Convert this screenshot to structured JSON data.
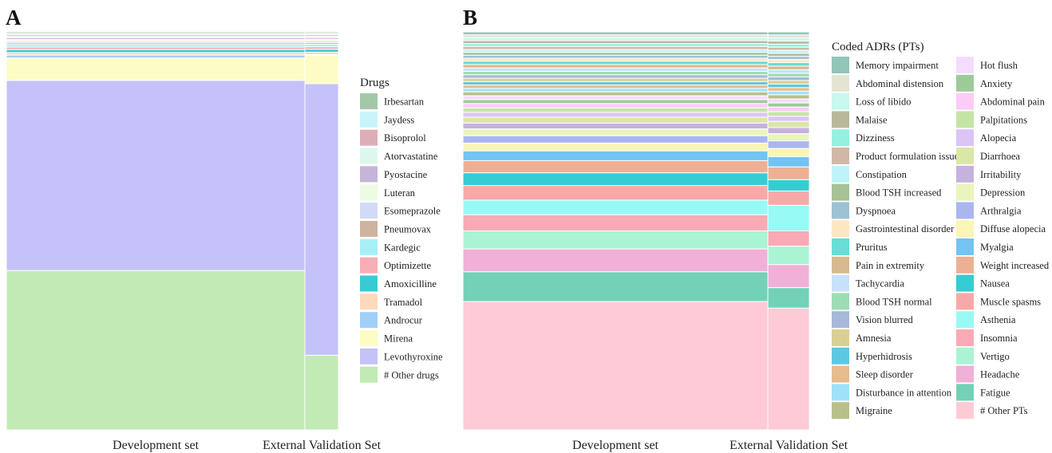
{
  "chart_data": [
    {
      "panel_label": "A",
      "type": "mosaic",
      "categories": [
        "Development set",
        "External Validation Set"
      ],
      "legend_title": "Drugs",
      "series": [
        {
          "name": "Irbesartan",
          "color": "#A3C8A7",
          "values": [
            0.0035,
            0.0035
          ]
        },
        {
          "name": "Jaydess",
          "color": "#C9F4FB",
          "values": [
            0.0035,
            0.0035
          ]
        },
        {
          "name": "Bisoprolol",
          "color": "#DDAFB5",
          "values": [
            0.0035,
            0.0035
          ]
        },
        {
          "name": "Atorvastatine",
          "color": "#DCF8EC",
          "values": [
            0.0035,
            0.0035
          ]
        },
        {
          "name": "Pyostacine",
          "color": "#C7B5D9",
          "values": [
            0.004,
            0.004
          ]
        },
        {
          "name": "Luteran",
          "color": "#EDFCE0",
          "values": [
            0.004,
            0.004
          ]
        },
        {
          "name": "Esomeprazole",
          "color": "#D2DAF6",
          "values": [
            0.004,
            0.004
          ]
        },
        {
          "name": "Pneumovax",
          "color": "#CDB49E",
          "values": [
            0.004,
            0.004
          ]
        },
        {
          "name": "Kardegic",
          "color": "#A8F0F8",
          "values": [
            0.006,
            0.006
          ]
        },
        {
          "name": "Optimizette",
          "color": "#F7AEB5",
          "values": [
            0.006,
            0.006
          ]
        },
        {
          "name": "Amoxicilline",
          "color": "#38CBD3",
          "values": [
            0.007,
            0.007
          ]
        },
        {
          "name": "Tramadol",
          "color": "#FDD9BD",
          "values": [
            0.006,
            0.006
          ]
        },
        {
          "name": "Androcur",
          "color": "#A2CFF8",
          "values": [
            0.007,
            0.002
          ]
        },
        {
          "name": "Mirena",
          "color": "#FCFCC4",
          "values": [
            0.053,
            0.068
          ]
        },
        {
          "name": "Levothyroxine",
          "color": "#C4C2F8",
          "values": [
            0.45,
            0.655
          ]
        },
        {
          "name": "# Other drugs",
          "color": "#C2EAB5",
          "values": [
            0.377,
            0.18
          ]
        }
      ]
    },
    {
      "panel_label": "B",
      "type": "mosaic",
      "categories": [
        "Development set",
        "External Validation Set"
      ],
      "legend_title": "Coded ADRs (PTs)",
      "series": [
        {
          "name": "Memory impairment",
          "color": "#93C5B8",
          "values": [
            0.006,
            0.006
          ]
        },
        {
          "name": "Abdominal distension",
          "color": "#E4E4D2",
          "values": [
            0.006,
            0.006
          ]
        },
        {
          "name": "Loss of libido",
          "color": "#C8F8EE",
          "values": [
            0.006,
            0.006
          ]
        },
        {
          "name": "Malaise",
          "color": "#B9B89A",
          "values": [
            0.006,
            0.006
          ]
        },
        {
          "name": "Dizziness",
          "color": "#96F0DF",
          "values": [
            0.006,
            0.006
          ]
        },
        {
          "name": "Product formulation issue",
          "color": "#D2B7A7",
          "values": [
            0.006,
            0.006
          ]
        },
        {
          "name": "Constipation",
          "color": "#BFF3FA",
          "values": [
            0.006,
            0.006
          ]
        },
        {
          "name": "Blood TSH increased",
          "color": "#A6C296",
          "values": [
            0.006,
            0.006
          ]
        },
        {
          "name": "Dyspnoea",
          "color": "#9CC2D3",
          "values": [
            0.006,
            0.006
          ]
        },
        {
          "name": "Gastrointestinal disorder",
          "color": "#FDE7C3",
          "values": [
            0.006,
            0.006
          ]
        },
        {
          "name": "Pruritus",
          "color": "#66DED7",
          "values": [
            0.007,
            0.007
          ]
        },
        {
          "name": "Pain in extremity",
          "color": "#D7BA8F",
          "values": [
            0.007,
            0.007
          ]
        },
        {
          "name": "Tachycardia",
          "color": "#C8E1FA",
          "values": [
            0.007,
            0.007
          ]
        },
        {
          "name": "Blood TSH normal",
          "color": "#9EDDB3",
          "values": [
            0.007,
            0.007
          ]
        },
        {
          "name": "Vision blurred",
          "color": "#A7B8D8",
          "values": [
            0.007,
            0.007
          ]
        },
        {
          "name": "Amnesia",
          "color": "#DACF93",
          "values": [
            0.007,
            0.007
          ]
        },
        {
          "name": "Hyperhidrosis",
          "color": "#5DC8E3",
          "values": [
            0.007,
            0.007
          ]
        },
        {
          "name": "Sleep disorder",
          "color": "#E6BC8E",
          "values": [
            0.007,
            0.007
          ]
        },
        {
          "name": "Disturbance in attention",
          "color": "#9FE2F8",
          "values": [
            0.007,
            0.007
          ]
        },
        {
          "name": "Migraine",
          "color": "#B8C08A",
          "values": [
            0.008,
            0.008
          ]
        },
        {
          "name": "Hot flush",
          "color": "#F4DDFC",
          "values": [
            0.008,
            0.008
          ]
        },
        {
          "name": "Anxiety",
          "color": "#9CCB98",
          "values": [
            0.008,
            0.008
          ]
        },
        {
          "name": "Abdominal pain",
          "color": "#FCCCF6",
          "values": [
            0.009,
            0.009
          ]
        },
        {
          "name": "Palpitations",
          "color": "#C4E4A4",
          "values": [
            0.009,
            0.009
          ]
        },
        {
          "name": "Alopecia",
          "color": "#DCC4F5",
          "values": [
            0.01,
            0.01
          ]
        },
        {
          "name": "Diarrhoea",
          "color": "#DAE7A7",
          "values": [
            0.012,
            0.012
          ]
        },
        {
          "name": "Irritability",
          "color": "#C6B1DF",
          "values": [
            0.012,
            0.012
          ]
        },
        {
          "name": "Depression",
          "color": "#E9F5BC",
          "values": [
            0.014,
            0.014
          ]
        },
        {
          "name": "Arthralgia",
          "color": "#AAB6EE",
          "values": [
            0.015,
            0.015
          ]
        },
        {
          "name": "Diffuse alopecia",
          "color": "#FBF5B6",
          "values": [
            0.016,
            0.016
          ]
        },
        {
          "name": "Myalgia",
          "color": "#72C4F2",
          "values": [
            0.02,
            0.02
          ]
        },
        {
          "name": "Weight increased",
          "color": "#EEB095",
          "values": [
            0.025,
            0.025
          ]
        },
        {
          "name": "Nausea",
          "color": "#36CCD3",
          "values": [
            0.026,
            0.022
          ]
        },
        {
          "name": "Muscle spasms",
          "color": "#F7A9A8",
          "values": [
            0.03,
            0.028
          ]
        },
        {
          "name": "Asthenia",
          "color": "#98FAF4",
          "values": [
            0.03,
            0.05
          ]
        },
        {
          "name": "Insomnia",
          "color": "#F9AAB4",
          "values": [
            0.033,
            0.03
          ]
        },
        {
          "name": "Vertigo",
          "color": "#AAF4D4",
          "values": [
            0.037,
            0.036
          ]
        },
        {
          "name": "Headache",
          "color": "#F0B0D8",
          "values": [
            0.047,
            0.045
          ]
        },
        {
          "name": "Fatigue",
          "color": "#73D1B8",
          "values": [
            0.061,
            0.04
          ]
        },
        {
          "name": "# Other PTs",
          "color": "#FDCAD6",
          "values": [
            0.263,
            0.238
          ]
        }
      ]
    }
  ]
}
